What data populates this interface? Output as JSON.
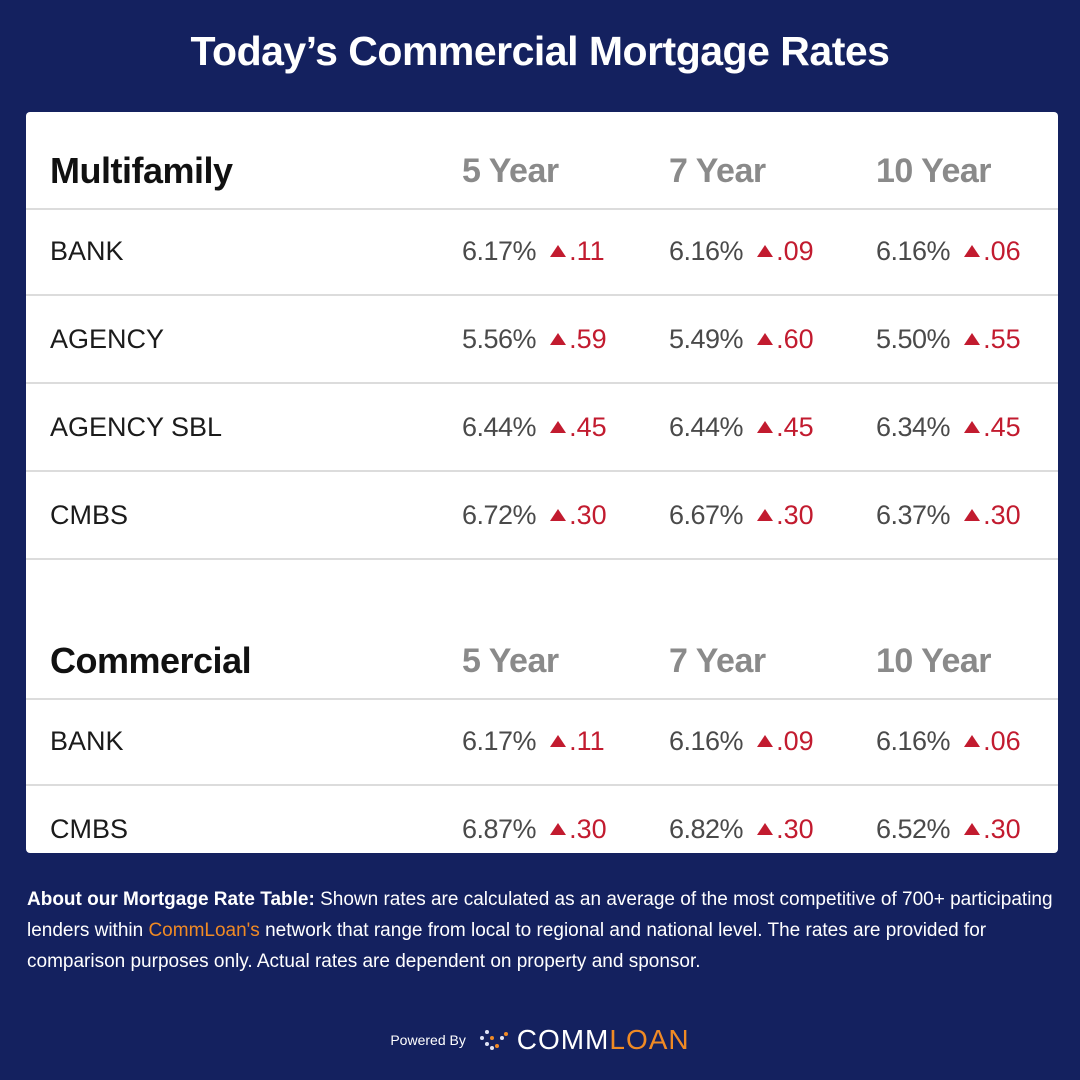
{
  "title": "Today’s Commercial Mortgage Rates",
  "colors": {
    "background": "#14215f",
    "increase": "#c21b2f",
    "brand_accent": "#f08a24"
  },
  "sections": [
    {
      "name": "Multifamily",
      "columns": [
        "5 Year",
        "7 Year",
        "10 Year"
      ],
      "rows": [
        {
          "label": "BANK",
          "cells": [
            {
              "rate": "6.17%",
              "change": ".11"
            },
            {
              "rate": "6.16%",
              "change": ".09"
            },
            {
              "rate": "6.16%",
              "change": ".06"
            }
          ]
        },
        {
          "label": "AGENCY",
          "cells": [
            {
              "rate": "5.56%",
              "change": ".59"
            },
            {
              "rate": "5.49%",
              "change": ".60"
            },
            {
              "rate": "5.50%",
              "change": ".55"
            }
          ]
        },
        {
          "label": "AGENCY SBL",
          "cells": [
            {
              "rate": "6.44%",
              "change": ".45"
            },
            {
              "rate": "6.44%",
              "change": ".45"
            },
            {
              "rate": "6.34%",
              "change": ".45"
            }
          ]
        },
        {
          "label": "CMBS",
          "cells": [
            {
              "rate": "6.72%",
              "change": ".30"
            },
            {
              "rate": "6.67%",
              "change": ".30"
            },
            {
              "rate": "6.37%",
              "change": ".30"
            }
          ]
        }
      ]
    },
    {
      "name": "Commercial",
      "columns": [
        "5 Year",
        "7 Year",
        "10 Year"
      ],
      "rows": [
        {
          "label": "BANK",
          "cells": [
            {
              "rate": "6.17%",
              "change": ".11"
            },
            {
              "rate": "6.16%",
              "change": ".09"
            },
            {
              "rate": "6.16%",
              "change": ".06"
            }
          ]
        },
        {
          "label": "CMBS",
          "cells": [
            {
              "rate": "6.87%",
              "change": ".30"
            },
            {
              "rate": "6.82%",
              "change": ".30"
            },
            {
              "rate": "6.52%",
              "change": ".30"
            }
          ]
        }
      ]
    }
  ],
  "change_icon": "triangle-up-icon",
  "note": {
    "heading": "About our Mortgage Rate Table:",
    "text1": " Shown rates are calculated as an average of the most competitive of 700+ participating lenders within ",
    "brand": "CommLoan's",
    "text2": " network that range from local to regional and national level. The rates are provided for comparison purposes only. Actual rates are dependent on property and sponsor."
  },
  "footer": {
    "powered_by": "Powered By",
    "logo_part1": "COMM",
    "logo_part2": "LOAN"
  }
}
